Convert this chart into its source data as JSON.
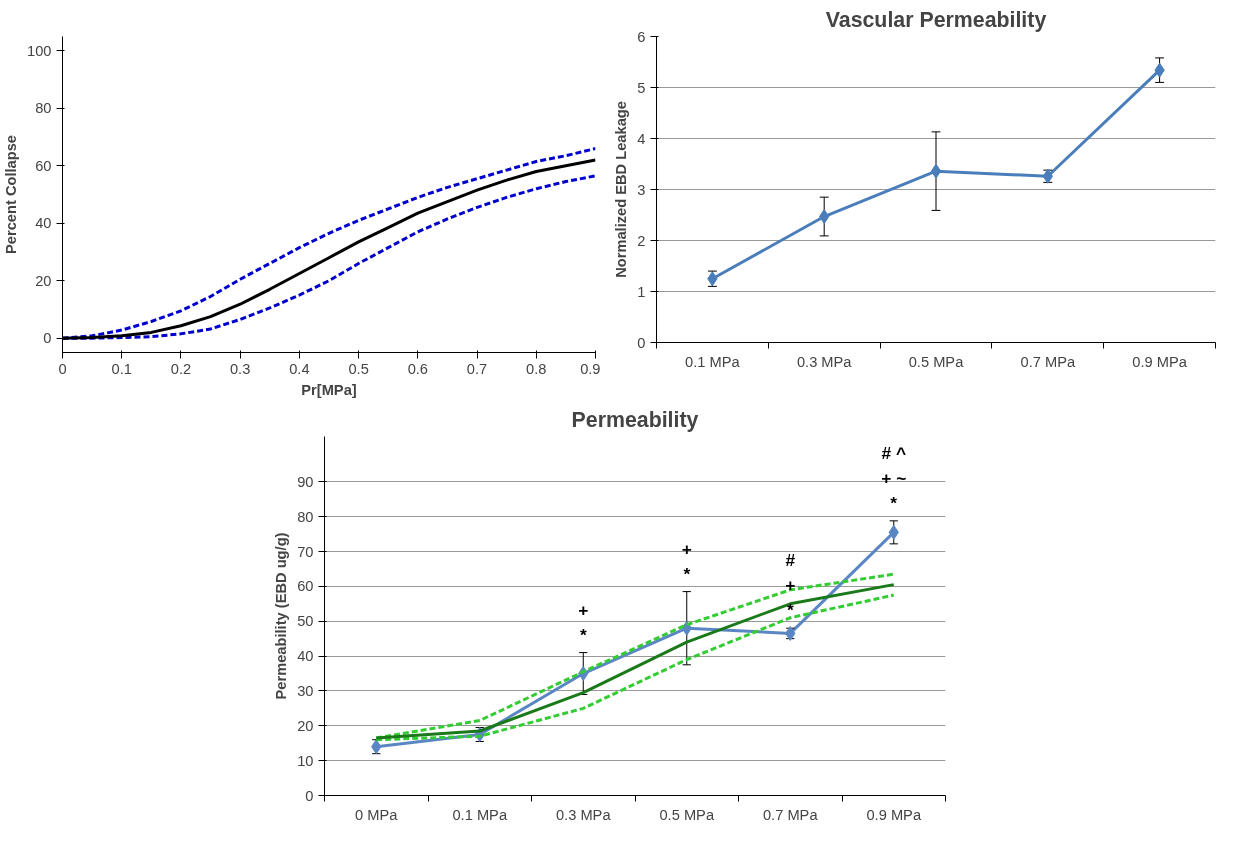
{
  "chart_data": [
    {
      "type": "line",
      "xlabel": "Pr[MPa]",
      "ylabel": "Percent Collapse",
      "xlim": [
        0,
        0.9
      ],
      "ylim": [
        -5,
        105
      ],
      "xticks": [
        0,
        0.1,
        0.2,
        0.3,
        0.4,
        0.5,
        0.6,
        0.7,
        0.8,
        0.9
      ],
      "yticks": [
        0,
        20,
        40,
        60,
        80,
        100
      ],
      "grid": false,
      "marker": "none",
      "x": [
        0,
        0.05,
        0.1,
        0.15,
        0.2,
        0.25,
        0.3,
        0.35,
        0.4,
        0.45,
        0.5,
        0.55,
        0.6,
        0.65,
        0.7,
        0.75,
        0.8,
        0.85,
        0.9
      ],
      "series": [
        {
          "color": "#0000cc",
          "line_style": "dashed",
          "values": [
            0,
            0.8,
            2.8,
            5.8,
            9.5,
            14.5,
            20.5,
            26,
            31.5,
            36.5,
            41,
            45,
            49,
            52.5,
            55.5,
            58.5,
            61.5,
            63.5,
            66
          ]
        },
        {
          "color": "#0000cc",
          "line_style": "dashed",
          "values": [
            0,
            0,
            0.2,
            0.5,
            1.5,
            3.2,
            6.5,
            10.5,
            15,
            20,
            26,
            31.5,
            37,
            41.5,
            45.5,
            49,
            52,
            54.5,
            56.5
          ]
        },
        {
          "color": "#000000",
          "line_style": "solid",
          "values": [
            0,
            0.2,
            0.8,
            2,
            4.3,
            7.5,
            11.8,
            17,
            22.5,
            28,
            33.5,
            38.5,
            43.5,
            47.5,
            51.5,
            55,
            58,
            60,
            62
          ]
        }
      ]
    },
    {
      "type": "line",
      "title": "Vascular Permeability",
      "ylabel": "Normalized EBD Leakage",
      "categories": [
        "0.1 MPa",
        "0.3 MPa",
        "0.5 MPa",
        "0.7 MPa",
        "0.9 MPa"
      ],
      "ylim": [
        0,
        6
      ],
      "yticks": [
        0,
        1,
        2,
        3,
        4,
        5,
        6
      ],
      "grid": "y",
      "marker": "diamond",
      "series": [
        {
          "color": "#4a7ebb",
          "values": [
            1.25,
            2.47,
            3.36,
            3.26,
            5.34
          ],
          "errors": [
            0.15,
            0.38,
            0.77,
            0.12,
            0.24
          ]
        }
      ]
    },
    {
      "type": "line",
      "title": "Permeability",
      "ylabel": "Permeability (EBD ug/g)",
      "categories": [
        "0 MPa",
        "0.1 MPa",
        "0.3 MPa",
        "0.5 MPa",
        "0.7 MPa",
        "0.9 MPa"
      ],
      "ylim": [
        0,
        103
      ],
      "yticks": [
        0,
        10,
        20,
        30,
        40,
        50,
        60,
        70,
        80,
        90
      ],
      "grid": "y",
      "series": [
        {
          "color": "#5a86c4",
          "marker": "diamond",
          "line_style": "solid",
          "values": [
            14,
            17.5,
            35,
            48,
            46.5,
            75.5
          ],
          "errors": [
            2,
            2,
            6,
            10.5,
            1.5,
            3.3
          ],
          "value_labels": [
            null,
            null,
            "+\n*",
            "+\n*",
            "#\n+\n*",
            "# ^\n+ ~\n*"
          ]
        },
        {
          "color": "#33cc33",
          "marker": "none",
          "line_style": "dashed",
          "values": [
            16.5,
            21.5,
            35.5,
            49,
            59,
            63.5
          ]
        },
        {
          "color": "#33cc33",
          "marker": "none",
          "line_style": "dashed",
          "values": [
            16,
            17,
            25,
            39,
            51,
            57.5
          ]
        },
        {
          "color": "#1a7a1a",
          "marker": "none",
          "line_style": "solid",
          "values": [
            16.5,
            18.5,
            29.5,
            44,
            55,
            60.5
          ]
        }
      ]
    }
  ]
}
